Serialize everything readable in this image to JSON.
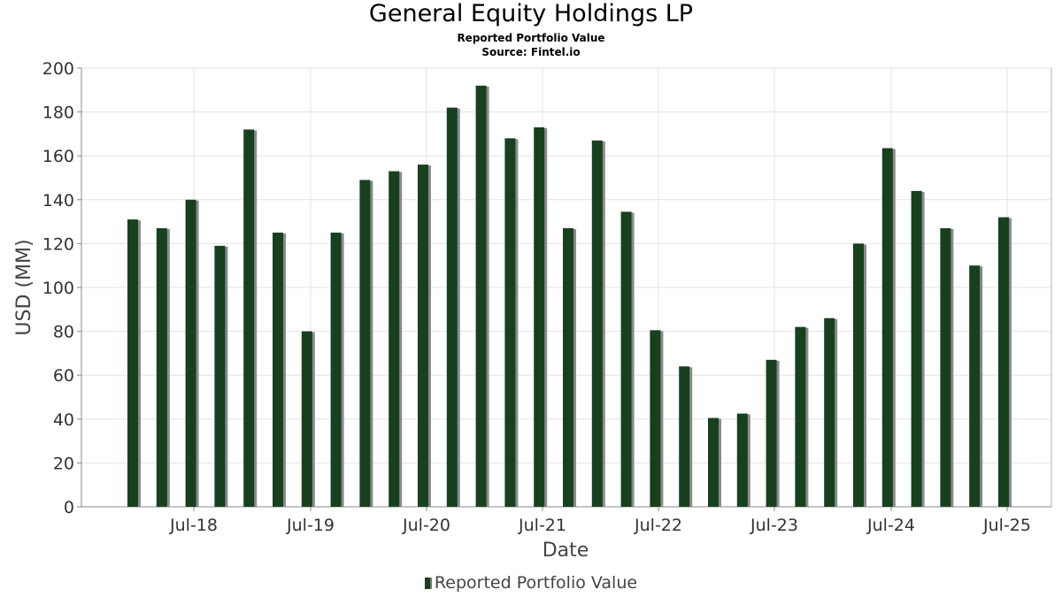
{
  "title": "General Equity Holdings LP",
  "subtitle": "Reported Portfolio Value",
  "source": "Source: Fintel.io",
  "colors": {
    "bar": "#17401f",
    "shadow": "#8a8a8a",
    "grid": "#e3e3e3",
    "axis": "#888888"
  },
  "chart_data": {
    "type": "bar",
    "title": "General Equity Holdings LP",
    "subtitle": "Reported Portfolio Value",
    "xlabel": "Date",
    "ylabel": "USD (MM)",
    "ylim": [
      0,
      200
    ],
    "yticks": [
      0,
      20,
      40,
      60,
      80,
      100,
      120,
      140,
      160,
      180,
      200
    ],
    "xtick_labels": [
      "Jul-18",
      "Jul-19",
      "Jul-20",
      "Jul-21",
      "Jul-22",
      "Jul-23",
      "Jul-24",
      "Jul-25"
    ],
    "grid": true,
    "legend_position": "bottom",
    "series": [
      {
        "name": "Reported Portfolio Value",
        "values": [
          131,
          127,
          140,
          119,
          172,
          125,
          80,
          125,
          149,
          153,
          156,
          182,
          192,
          168,
          173,
          127,
          167,
          134.5,
          80.5,
          64,
          40.5,
          42.5,
          67,
          82,
          86,
          120,
          163.5,
          144,
          127,
          110,
          132
        ]
      }
    ]
  }
}
